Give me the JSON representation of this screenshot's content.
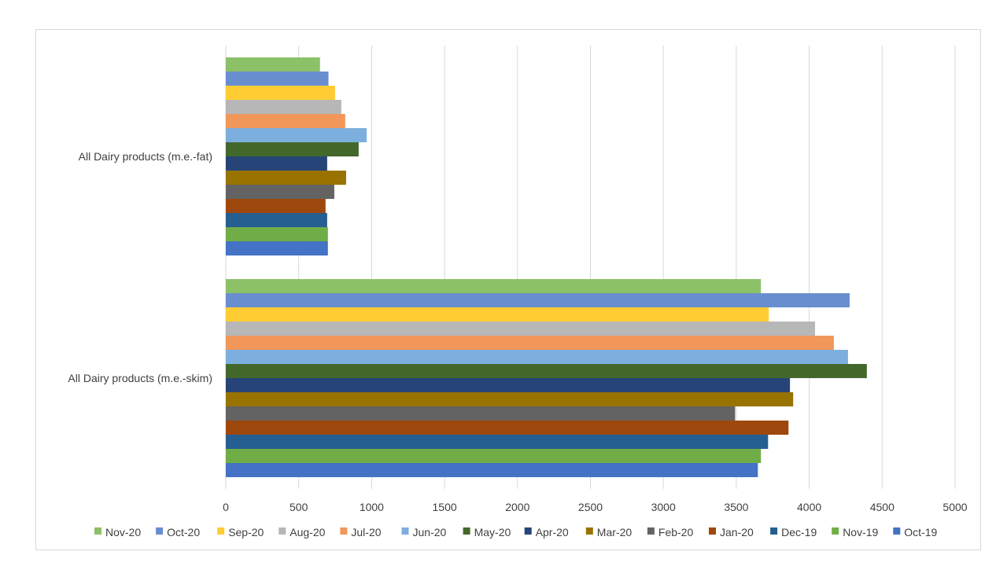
{
  "chart_data": {
    "type": "bar",
    "orientation": "horizontal",
    "title": "",
    "xlabel": "",
    "ylabel": "",
    "categories": [
      "All Dairy products (m.e.-skim)",
      "All Dairy products (m.e.-fat)"
    ],
    "xlim": [
      0,
      5000
    ],
    "xticks": [
      0,
      500,
      1000,
      1500,
      2000,
      2500,
      3000,
      3500,
      4000,
      4500,
      5000
    ],
    "grid": true,
    "legend_position": "bottom",
    "series": [
      {
        "name": "Oct-19",
        "color": "#4472C4",
        "values": [
          3648,
          700
        ]
      },
      {
        "name": "Nov-19",
        "color": "#70AD47",
        "values": [
          3669,
          700
        ]
      },
      {
        "name": "Dec-19",
        "color": "#255E91",
        "values": [
          3718,
          695
        ]
      },
      {
        "name": "Jan-20",
        "color": "#9E480E",
        "values": [
          3858,
          684
        ]
      },
      {
        "name": "Feb-20",
        "color": "#636363",
        "values": [
          3492,
          744
        ]
      },
      {
        "name": "Mar-20",
        "color": "#997300",
        "values": [
          3890,
          825
        ]
      },
      {
        "name": "Apr-20",
        "color": "#264478",
        "values": [
          3868,
          695
        ]
      },
      {
        "name": "May-20",
        "color": "#43682B",
        "values": [
          4395,
          911
        ]
      },
      {
        "name": "Jun-20",
        "color": "#7CAFDD",
        "values": [
          4266,
          966
        ]
      },
      {
        "name": "Jul-20",
        "color": "#F1975A",
        "values": [
          4169,
          819
        ]
      },
      {
        "name": "Aug-20",
        "color": "#B7B7B7",
        "values": [
          4040,
          792
        ]
      },
      {
        "name": "Sep-20",
        "color": "#FFCD33",
        "values": [
          3723,
          749
        ]
      },
      {
        "name": "Oct-20",
        "color": "#698ED0",
        "values": [
          4277,
          704
        ]
      },
      {
        "name": "Nov-20",
        "color": "#8CC168",
        "values": [
          3669,
          646
        ]
      }
    ]
  }
}
